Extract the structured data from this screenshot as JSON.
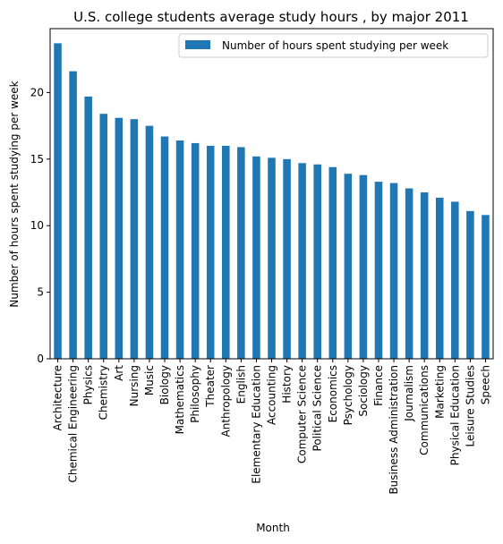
{
  "chart_data": {
    "type": "bar",
    "title": "U.S. college students average study hours , by major 2011",
    "xlabel": "Month",
    "ylabel": "Number of hours spent studying per week",
    "ylim": [
      0,
      24.8
    ],
    "yticks": [
      0,
      5,
      10,
      15,
      20
    ],
    "legend_position": "top-right",
    "bar_color": "#1f77b4",
    "categories": [
      "Architecture",
      "Chemical Engineering",
      "Physics",
      "Chemistry",
      "Art",
      "Nursing",
      "Music",
      "Biology",
      "Mathematics",
      "Philosophy",
      "Theater",
      "Anthropology",
      "English",
      "Elementary Education",
      "Accounting",
      "History",
      "Computer Science",
      "Political Science",
      "Economics",
      "Psychology",
      "Sociology",
      "Finance",
      "Business Administration",
      "Journalism",
      "Communications",
      "Marketing",
      "Physical Education",
      "Leisure Studies",
      "Speech"
    ],
    "series": [
      {
        "name": "Number of hours spent studying per week",
        "values": [
          23.7,
          21.6,
          19.7,
          18.4,
          18.1,
          18.0,
          17.5,
          16.7,
          16.4,
          16.2,
          16.0,
          16.0,
          15.9,
          15.2,
          15.1,
          15.0,
          14.7,
          14.6,
          14.4,
          13.9,
          13.8,
          13.3,
          13.2,
          12.8,
          12.5,
          12.1,
          11.8,
          11.1,
          10.8
        ]
      }
    ]
  }
}
